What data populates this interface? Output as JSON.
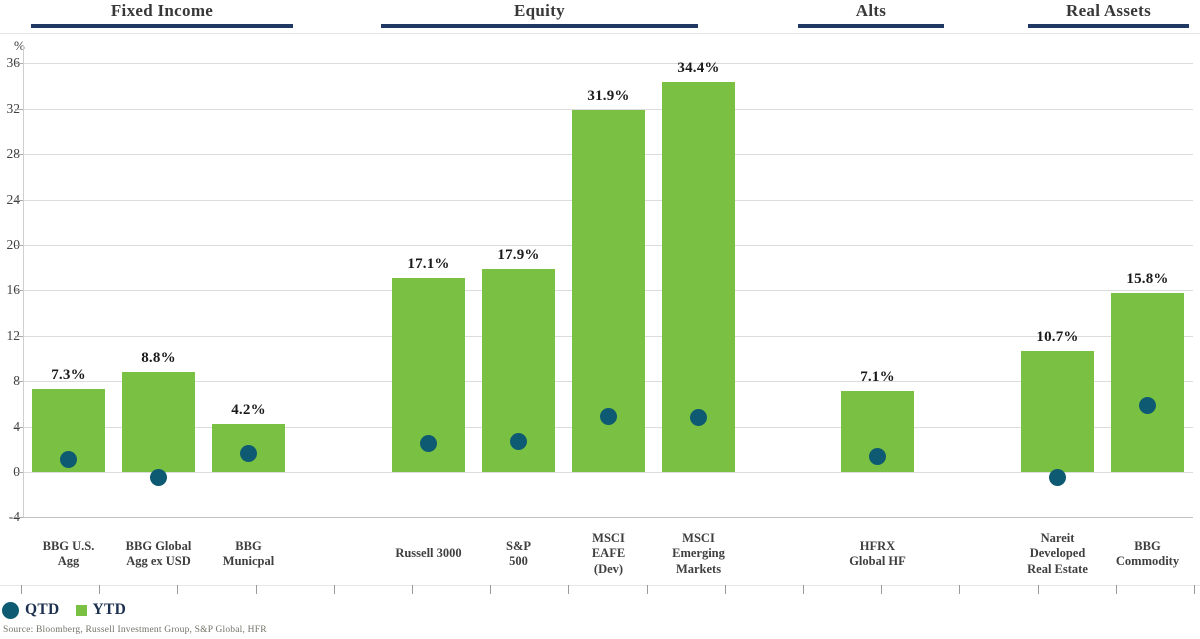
{
  "chart_data": {
    "type": "bar",
    "title": "",
    "ylabel": "%",
    "ylim": [
      -4,
      36
    ],
    "yticks": [
      36,
      32,
      28,
      24,
      20,
      16,
      12,
      8,
      4,
      0,
      -4
    ],
    "grid": true,
    "legend_position": "bottom-left",
    "groups": [
      {
        "label": "Fixed Income",
        "from": 0,
        "to": 2
      },
      {
        "label": "Equity",
        "from": 3,
        "to": 6
      },
      {
        "label": "Alts",
        "from": 7,
        "to": 7
      },
      {
        "label": "Real Assets",
        "from": 8,
        "to": 9
      }
    ],
    "categories": [
      "BBG U.S.\nAgg",
      "BBG Global\nAgg ex USD",
      "BBG\nMunicpal",
      "Russell 3000",
      "S&P\n500",
      "MSCI\nEAFE\n(Dev)",
      "MSCI\nEmerging\nMarkets",
      "HFRX\nGlobal HF",
      "Nareit\nDeveloped\nReal Estate",
      "BBG\nCommodity"
    ],
    "series": [
      {
        "name": "QTD",
        "style": "dot",
        "color": "#0E5A73",
        "values": [
          1.1,
          -0.5,
          1.6,
          2.5,
          2.7,
          4.9,
          4.8,
          1.4,
          -0.5,
          5.9
        ]
      },
      {
        "name": "YTD",
        "style": "bar",
        "color": "#7AC143",
        "values": [
          7.3,
          8.8,
          4.2,
          17.1,
          17.9,
          31.9,
          34.4,
          7.1,
          10.7,
          15.8
        ],
        "labels": [
          "7.3%",
          "8.8%",
          "4.2%",
          "17.1%",
          "17.9%",
          "31.9%",
          "34.4%",
          "7.1%",
          "10.7%",
          "15.8%"
        ]
      }
    ]
  },
  "legend": {
    "items": [
      {
        "label": "QTD",
        "swatch": "circle"
      },
      {
        "label": "YTD",
        "swatch": "square"
      }
    ]
  },
  "source_note": "Source: Bloomberg, Russell Investment Group, S&P Global, HFR",
  "colors": {
    "bar_green": "#7AC143",
    "dot_teal": "#0E5A73",
    "header_navy": "#1F3864",
    "gridline": "#DCDCDC",
    "text_dark": "#333333",
    "category_label": "#3F3F3F",
    "source_text": "#73736A"
  }
}
